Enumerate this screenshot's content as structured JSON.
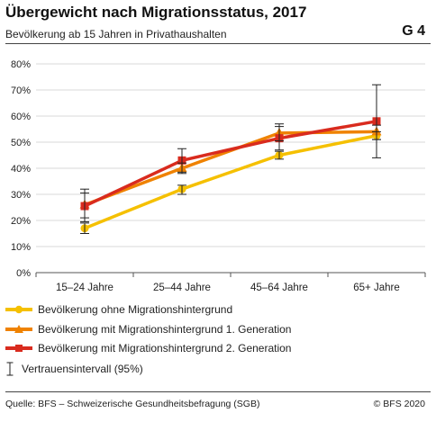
{
  "header": {
    "title": "Übergewicht nach Migrationsstatus, 2017",
    "subtitle": "Bevölkerung ab 15 Jahren in Privathaushalten",
    "code": "G 4"
  },
  "chart_data": {
    "type": "line",
    "categories": [
      "15–24 Jahre",
      "25–44 Jahre",
      "45–64 Jahre",
      "65+ Jahre"
    ],
    "ylim": [
      0,
      80
    ],
    "yticks": [
      0,
      10,
      20,
      30,
      40,
      50,
      60,
      70,
      80
    ],
    "ytick_format": "percent",
    "grid": true,
    "series": [
      {
        "name": "Bevölkerung ohne Migrationshintergrund",
        "marker": "circle",
        "color": "#f5c000",
        "values": [
          17,
          32,
          45,
          52.5
        ],
        "ci_low": [
          15,
          30,
          43.5,
          51
        ],
        "ci_high": [
          19,
          33.5,
          46.5,
          54
        ]
      },
      {
        "name": "Bevölkerung mit Migrationshintergrund 1. Generation",
        "marker": "triangle",
        "color": "#ef8200",
        "values": [
          26,
          40,
          53.5,
          54
        ],
        "ci_low": [
          21,
          38,
          50.5,
          51
        ],
        "ci_high": [
          32,
          42,
          56,
          56.5
        ]
      },
      {
        "name": "Bevölkerung mit Migrationshintergrund 2. Generation",
        "marker": "square",
        "color": "#d92b1e",
        "values": [
          25.5,
          43,
          51.5,
          58
        ],
        "ci_low": [
          19.5,
          38.5,
          47,
          44
        ],
        "ci_high": [
          30.5,
          47.5,
          57,
          72
        ]
      }
    ],
    "ci_legend_label": "Vertrauensintervall (95%)"
  },
  "footer": {
    "source": "Quelle: BFS – Schweizerische Gesundheitsbefragung (SGB)",
    "copyright": "© BFS 2020"
  }
}
